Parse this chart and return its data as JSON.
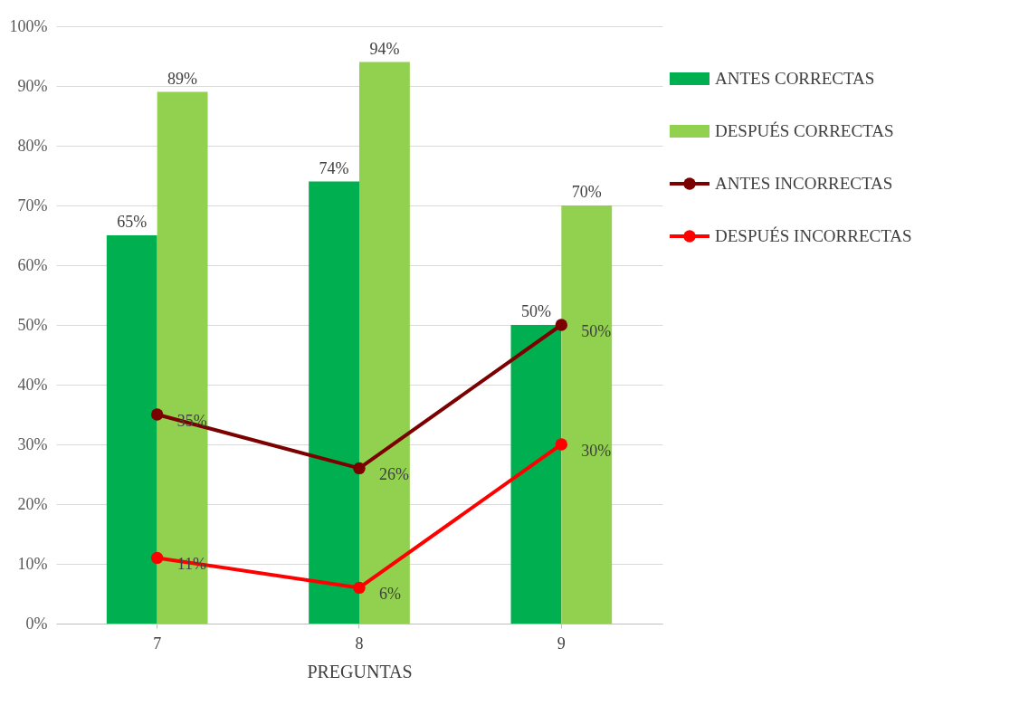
{
  "chart_data": {
    "type": "bar",
    "xlabel": "PREGUNTAS",
    "categories": [
      "7",
      "8",
      "9"
    ],
    "series": [
      {
        "name": "ANTES  CORRECTAS",
        "color": "#00b050",
        "values": [
          65,
          74,
          50
        ],
        "value_labels": [
          "65%",
          "74%",
          "50%"
        ]
      },
      {
        "name": "DESPUÉS  CORRECTAS",
        "color": "#92d050",
        "values": [
          89,
          94,
          70
        ],
        "value_labels": [
          "89%",
          "94%",
          "70%"
        ]
      },
      {
        "name": "ANTES  INCORRECTAS",
        "type": "line",
        "color": "#7b0000",
        "values": [
          35,
          26,
          50
        ],
        "value_labels": [
          "35%",
          "26%",
          "50%"
        ]
      },
      {
        "name": "DESPUÉS INCORRECTAS",
        "type": "line",
        "color": "#ff0000",
        "values": [
          11,
          6,
          30
        ],
        "value_labels": [
          "11%",
          "6%",
          "30%"
        ]
      }
    ],
    "ylim": [
      0,
      100
    ],
    "yticks": [
      {
        "value": 0,
        "label": "0%"
      },
      {
        "value": 10,
        "label": "10%"
      },
      {
        "value": 20,
        "label": "20%"
      },
      {
        "value": 30,
        "label": "30%"
      },
      {
        "value": 40,
        "label": "40%"
      },
      {
        "value": 50,
        "label": "50%"
      },
      {
        "value": 60,
        "label": "60%"
      },
      {
        "value": 70,
        "label": "70%"
      },
      {
        "value": 80,
        "label": "80%"
      },
      {
        "value": 90,
        "label": "90%"
      },
      {
        "value": 100,
        "label": "100%"
      }
    ],
    "grid": "y",
    "legend": "right",
    "marker": "circle",
    "line_style": "solid"
  }
}
